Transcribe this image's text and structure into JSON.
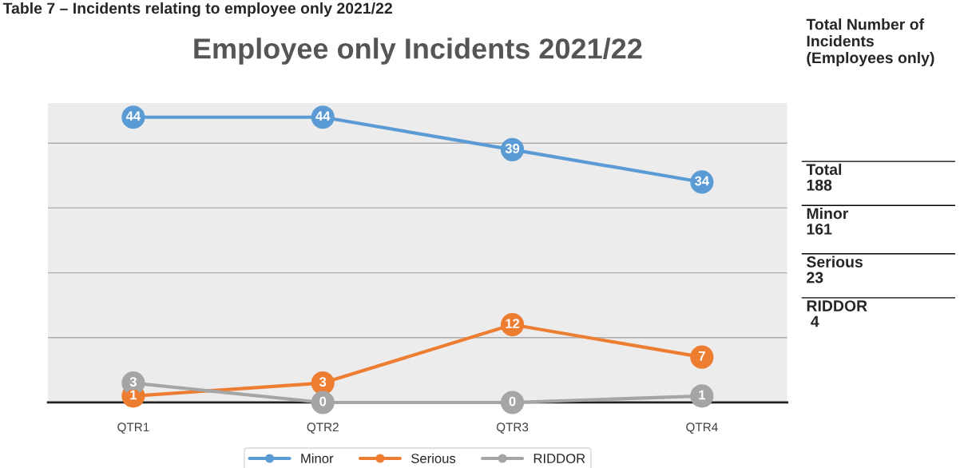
{
  "chart_data": [
    {
      "type": "line",
      "title": "Employee only Incidents 2021/22",
      "annotations": [
        "Table 7 – Incidents relating to employee only 2021/22"
      ],
      "categories": [
        "QTR1",
        "QTR2",
        "QTR3",
        "QTR4"
      ],
      "series": [
        {
          "name": "Minor",
          "color": "#5b9bd5",
          "values": [
            44,
            44,
            39,
            34
          ]
        },
        {
          "name": "Serious",
          "color": "#ed7d31",
          "values": [
            1,
            3,
            12,
            7
          ]
        },
        {
          "name": "RIDDOR",
          "color": "#a5a5a5",
          "values": [
            3,
            0,
            0,
            1
          ]
        }
      ],
      "tick_labels": "x",
      "grid": "y",
      "legend": "bottom",
      "marker": "circle",
      "line_style": "solid",
      "data_labels": true
    },
    {
      "type": "other",
      "annotations": [
        "Total Number of Incidents (Employees only)",
        "Total\n188",
        "Minor\n161",
        "Serious\n23",
        "RIDDOR\n 4"
      ]
    }
  ]
}
